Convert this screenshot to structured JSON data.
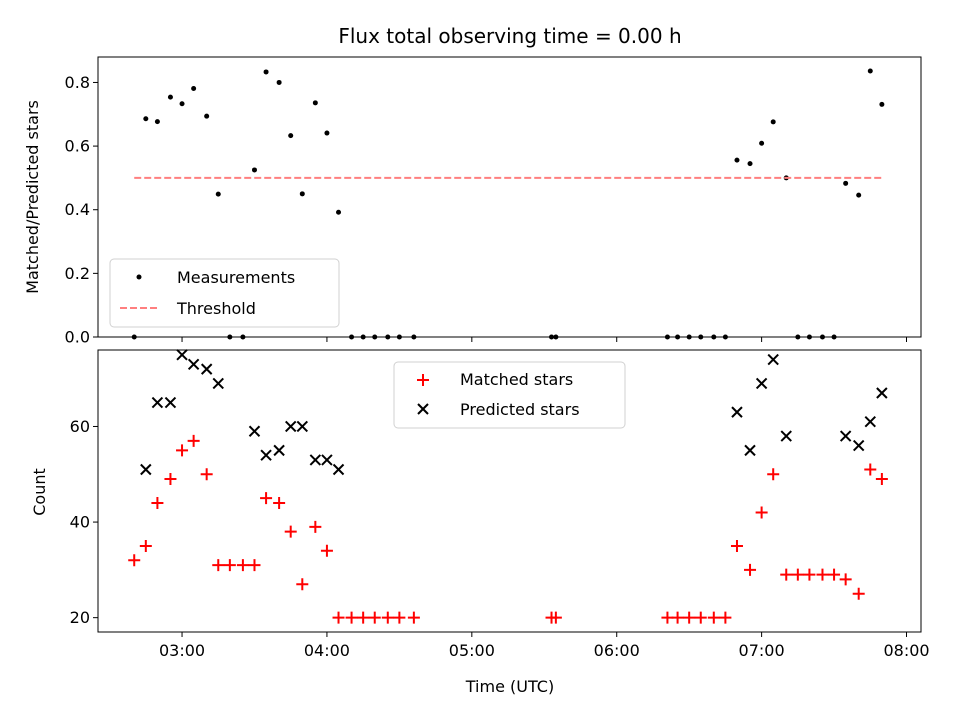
{
  "chart_data": {
    "title": "Flux total observing time = 0.00 h",
    "xlabel": "Time (UTC)",
    "x_unit": "hours UTC",
    "xlim": [
      2.42,
      8.1
    ],
    "x_ticks": [
      {
        "value": 3,
        "label": "03:00"
      },
      {
        "value": 4,
        "label": "04:00"
      },
      {
        "value": 5,
        "label": "05:00"
      },
      {
        "value": 6,
        "label": "06:00"
      },
      {
        "value": 7,
        "label": "07:00"
      },
      {
        "value": 8,
        "label": "08:00"
      }
    ],
    "panels": [
      {
        "type": "scatter",
        "ylabel": "Matched/Predicted stars",
        "ylim": [
          0,
          0.88
        ],
        "y_ticks": [
          0.0,
          0.2,
          0.4,
          0.6,
          0.8
        ],
        "y_tick_labels": [
          "0.0",
          "0.2",
          "0.4",
          "0.6",
          "0.8"
        ],
        "legend": {
          "position": "lower-left",
          "entries": [
            "Measurements",
            "Threshold"
          ]
        },
        "series": [
          {
            "name": "Measurements",
            "marker": "dot",
            "color": "#000000",
            "x": [
              2.67,
              2.75,
              2.83,
              2.92,
              3.0,
              3.08,
              3.17,
              3.25,
              3.33,
              3.42,
              3.5,
              3.58,
              3.67,
              3.75,
              3.83,
              3.92,
              4.0,
              4.08,
              4.17,
              4.25,
              4.33,
              4.42,
              4.5,
              4.6,
              5.55,
              5.58,
              6.35,
              6.42,
              6.5,
              6.58,
              6.67,
              6.75,
              6.83,
              6.92,
              7.0,
              7.08,
              7.17,
              7.25,
              7.33,
              7.42,
              7.5,
              7.58,
              7.67,
              7.75,
              7.83
            ],
            "y": [
              0.0,
              0.686,
              0.677,
              0.754,
              0.733,
              0.781,
              0.694,
              0.449,
              0.0,
              0.0,
              0.525,
              0.833,
              0.8,
              0.633,
              0.45,
              0.736,
              0.641,
              0.392,
              0.0,
              0.0,
              0.0,
              0.0,
              0.0,
              0.0,
              0.0,
              0.0,
              0.0,
              0.0,
              0.0,
              0.0,
              0.0,
              0.0,
              0.556,
              0.545,
              0.609,
              0.676,
              0.5,
              0.0,
              0.0,
              0.0,
              0.0,
              0.483,
              0.446,
              0.836,
              0.731
            ]
          },
          {
            "name": "Threshold",
            "style": "dashed",
            "color": "#ff7f7f",
            "x": [
              2.67,
              7.83
            ],
            "y": [
              0.5,
              0.5
            ]
          }
        ]
      },
      {
        "type": "scatter",
        "ylabel": "Count",
        "ylim": [
          17,
          76
        ],
        "y_ticks": [
          20,
          40,
          60
        ],
        "y_tick_labels": [
          "20",
          "40",
          "60"
        ],
        "legend": {
          "position": "upper-center",
          "entries": [
            "Matched stars",
            "Predicted stars"
          ]
        },
        "series": [
          {
            "name": "Matched stars",
            "marker": "plus",
            "color": "#ff0000",
            "x": [
              2.67,
              2.75,
              2.83,
              2.92,
              3.0,
              3.08,
              3.17,
              3.25,
              3.33,
              3.42,
              3.5,
              3.58,
              3.67,
              3.75,
              3.83,
              3.92,
              4.0,
              4.08,
              4.17,
              4.25,
              4.33,
              4.42,
              4.5,
              4.6,
              5.55,
              5.58,
              6.35,
              6.42,
              6.5,
              6.58,
              6.67,
              6.75,
              6.83,
              6.92,
              7.0,
              7.08,
              7.17,
              7.25,
              7.33,
              7.42,
              7.5,
              7.58,
              7.67,
              7.75,
              7.83
            ],
            "y": [
              32,
              35,
              44,
              49,
              55,
              57,
              50,
              31,
              31,
              31,
              31,
              45,
              44,
              38,
              27,
              39,
              34,
              20,
              20,
              20,
              20,
              20,
              20,
              20,
              20,
              20,
              20,
              20,
              20,
              20,
              20,
              20,
              35,
              30,
              42,
              50,
              29,
              29,
              29,
              29,
              29,
              28,
              25,
              51,
              49
            ]
          },
          {
            "name": "Predicted stars",
            "marker": "x",
            "color": "#000000",
            "x": [
              2.75,
              2.83,
              2.92,
              3.0,
              3.08,
              3.17,
              3.25,
              3.5,
              3.58,
              3.67,
              3.75,
              3.83,
              3.92,
              4.0,
              4.08,
              6.83,
              6.92,
              7.0,
              7.08,
              7.17,
              7.58,
              7.67,
              7.75,
              7.83
            ],
            "y": [
              51,
              65,
              65,
              75,
              73,
              72,
              69,
              59,
              54,
              55,
              60,
              60,
              53,
              53,
              51,
              63,
              55,
              69,
              74,
              58,
              58,
              56,
              61,
              67
            ]
          }
        ]
      }
    ]
  }
}
